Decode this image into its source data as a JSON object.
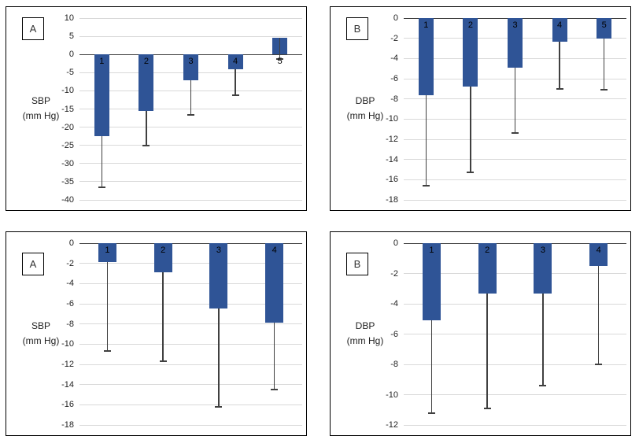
{
  "figure": {
    "description": "Four-panel figure of weighted mean blood pressure changes with lower error bars"
  },
  "colors": {
    "bar_fill": "#2F5496",
    "gridline": "#D9D9D9",
    "zero_axis": "#404040",
    "whisker": "#404040",
    "panel_border": "#000000",
    "text": "#1f1f1f"
  },
  "chart_data": [
    {
      "id": "top-left",
      "type": "bar",
      "panel_letter": "A",
      "ylabel": "SBP (mm Hg)",
      "ylabel_line1": "SBP",
      "ylabel_line2": "(mm Hg)",
      "ylim": [
        10,
        -40
      ],
      "yticks": [
        10,
        5,
        0,
        -5,
        -10,
        -15,
        -20,
        -25,
        -30,
        -35,
        -40
      ],
      "grid": true,
      "legend": false,
      "categories": [
        "1",
        "2",
        "3",
        "4",
        "5"
      ],
      "values": [
        -22.5,
        -15.5,
        -7.0,
        -4.0,
        4.5
      ],
      "whisker_ends": [
        -36.5,
        -25.0,
        -16.6,
        -11.3,
        -1.2
      ]
    },
    {
      "id": "top-right",
      "type": "bar",
      "panel_letter": "B",
      "ylabel": "DBP (mm Hg)",
      "ylabel_line1": "DBP",
      "ylabel_line2": "(mm Hg)",
      "ylim": [
        0,
        -18
      ],
      "yticks": [
        0,
        -2,
        -4,
        -6,
        -8,
        -10,
        -12,
        -14,
        -16,
        -18
      ],
      "grid": true,
      "legend": false,
      "categories": [
        "1",
        "2",
        "3",
        "4",
        "5"
      ],
      "values": [
        -7.6,
        -6.8,
        -4.9,
        -2.3,
        -2.0
      ],
      "whisker_ends": [
        -16.6,
        -15.3,
        -11.4,
        -7.0,
        -7.1
      ]
    },
    {
      "id": "bottom-left",
      "type": "bar",
      "panel_letter": "A",
      "ylabel": "SBP (mm Hg)",
      "ylabel_line1": "SBP",
      "ylabel_line2": "(mm Hg)",
      "ylim": [
        0,
        -18
      ],
      "yticks": [
        0,
        -2,
        -4,
        -6,
        -8,
        -10,
        -12,
        -14,
        -16,
        -18
      ],
      "grid": true,
      "legend": false,
      "categories": [
        "1",
        "2",
        "3",
        "4"
      ],
      "values": [
        -1.9,
        -2.9,
        -6.5,
        -7.9
      ],
      "whisker_ends": [
        -10.7,
        -11.7,
        -16.2,
        -14.5
      ]
    },
    {
      "id": "bottom-right",
      "type": "bar",
      "panel_letter": "B",
      "ylabel": "DBP (mm Hg)",
      "ylabel_line1": "DBP",
      "ylabel_line2": "(mm Hg)",
      "ylim": [
        0,
        -12
      ],
      "yticks": [
        0,
        -2,
        -4,
        -6,
        -8,
        -10,
        -12
      ],
      "grid": true,
      "legend": false,
      "categories": [
        "1",
        "2",
        "3",
        "4"
      ],
      "values": [
        -5.1,
        -3.3,
        -3.3,
        -1.5
      ],
      "whisker_ends": [
        -11.2,
        -10.9,
        -9.4,
        -8.0
      ]
    }
  ]
}
